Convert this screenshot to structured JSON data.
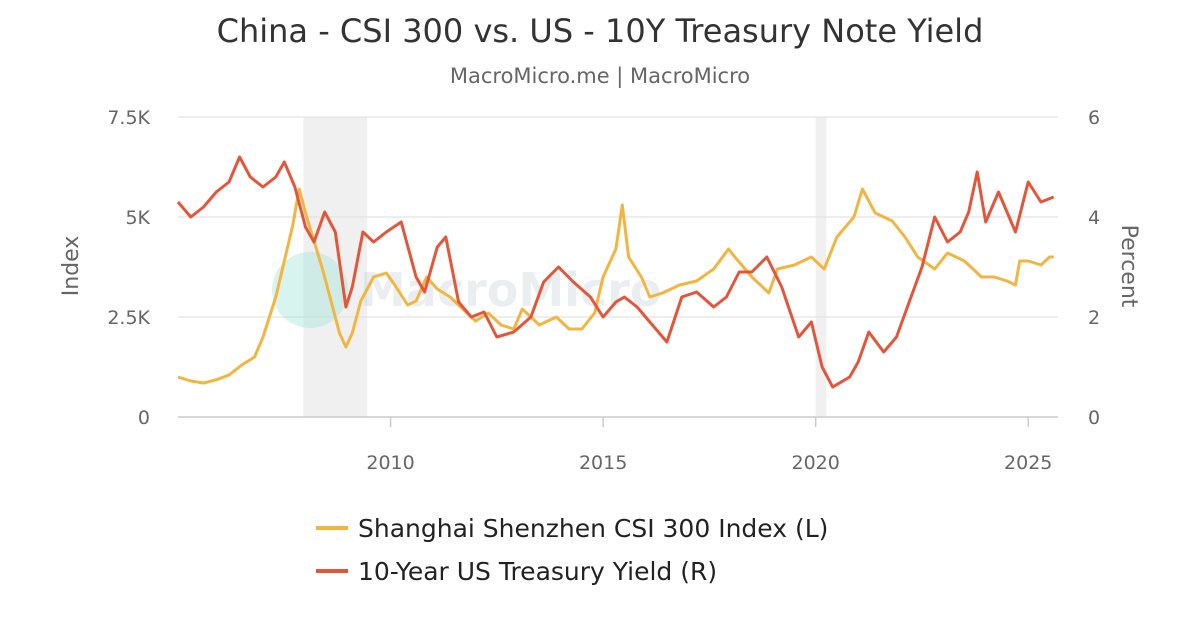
{
  "title": "China - CSI 300 vs. US - 10Y Treasury Note Yield",
  "subtitle": "MacroMicro.me | MacroMicro",
  "watermark": "MacroMicro",
  "chart_data": {
    "type": "line",
    "x_ticks": [
      "2010",
      "2015",
      "2020",
      "2025"
    ],
    "x_range": [
      2005.0,
      2025.7
    ],
    "left_axis": {
      "label": "Index",
      "range": [
        0,
        7500
      ],
      "ticks": [
        0,
        2500,
        5000,
        7500
      ],
      "tick_labels": [
        "0",
        "2.5K",
        "5K",
        "7.5K"
      ]
    },
    "right_axis": {
      "label": "Percent",
      "range": [
        0,
        6
      ],
      "ticks": [
        0,
        2,
        4,
        6
      ],
      "tick_labels": [
        "0",
        "2",
        "4",
        "6"
      ]
    },
    "shaded_periods": [
      [
        2007.95,
        2009.45
      ],
      [
        2020.0,
        2020.25
      ]
    ],
    "grid": true,
    "legend_position": "bottom",
    "series": [
      {
        "name": "Shanghai Shenzhen CSI 300 Index (L)",
        "axis": "left",
        "color": "#f2b640",
        "points": [
          [
            2005.0,
            1000
          ],
          [
            2005.3,
            900
          ],
          [
            2005.6,
            850
          ],
          [
            2005.9,
            930
          ],
          [
            2006.2,
            1050
          ],
          [
            2006.5,
            1300
          ],
          [
            2006.8,
            1500
          ],
          [
            2007.0,
            2000
          ],
          [
            2007.3,
            3000
          ],
          [
            2007.5,
            3900
          ],
          [
            2007.7,
            4800
          ],
          [
            2007.85,
            5700
          ],
          [
            2008.0,
            5100
          ],
          [
            2008.2,
            4400
          ],
          [
            2008.4,
            3700
          ],
          [
            2008.6,
            2900
          ],
          [
            2008.8,
            2100
          ],
          [
            2008.95,
            1750
          ],
          [
            2009.1,
            2100
          ],
          [
            2009.3,
            2900
          ],
          [
            2009.6,
            3500
          ],
          [
            2009.9,
            3600
          ],
          [
            2010.1,
            3300
          ],
          [
            2010.4,
            2800
          ],
          [
            2010.6,
            2900
          ],
          [
            2010.85,
            3500
          ],
          [
            2011.1,
            3200
          ],
          [
            2011.4,
            3000
          ],
          [
            2011.7,
            2700
          ],
          [
            2012.0,
            2400
          ],
          [
            2012.3,
            2600
          ],
          [
            2012.6,
            2300
          ],
          [
            2012.9,
            2200
          ],
          [
            2013.1,
            2700
          ],
          [
            2013.5,
            2300
          ],
          [
            2013.9,
            2500
          ],
          [
            2014.2,
            2200
          ],
          [
            2014.5,
            2200
          ],
          [
            2014.8,
            2600
          ],
          [
            2015.0,
            3500
          ],
          [
            2015.3,
            4200
          ],
          [
            2015.45,
            5300
          ],
          [
            2015.6,
            4000
          ],
          [
            2015.9,
            3500
          ],
          [
            2016.1,
            3000
          ],
          [
            2016.4,
            3100
          ],
          [
            2016.8,
            3300
          ],
          [
            2017.2,
            3400
          ],
          [
            2017.6,
            3700
          ],
          [
            2017.95,
            4200
          ],
          [
            2018.1,
            4000
          ],
          [
            2018.5,
            3500
          ],
          [
            2018.9,
            3100
          ],
          [
            2019.1,
            3700
          ],
          [
            2019.5,
            3800
          ],
          [
            2019.9,
            4000
          ],
          [
            2020.2,
            3700
          ],
          [
            2020.5,
            4500
          ],
          [
            2020.9,
            5000
          ],
          [
            2021.1,
            5700
          ],
          [
            2021.4,
            5100
          ],
          [
            2021.8,
            4900
          ],
          [
            2022.1,
            4500
          ],
          [
            2022.4,
            4000
          ],
          [
            2022.8,
            3700
          ],
          [
            2023.1,
            4100
          ],
          [
            2023.5,
            3900
          ],
          [
            2023.9,
            3500
          ],
          [
            2024.2,
            3500
          ],
          [
            2024.5,
            3400
          ],
          [
            2024.7,
            3300
          ],
          [
            2024.8,
            3900
          ],
          [
            2025.0,
            3900
          ],
          [
            2025.3,
            3800
          ],
          [
            2025.5,
            4000
          ],
          [
            2025.6,
            4000
          ]
        ]
      },
      {
        "name": "10-Year US Treasury Yield (R)",
        "axis": "right",
        "color": "#e5553a",
        "points": [
          [
            2005.0,
            4.3
          ],
          [
            2005.3,
            4.0
          ],
          [
            2005.6,
            4.2
          ],
          [
            2005.9,
            4.5
          ],
          [
            2006.2,
            4.7
          ],
          [
            2006.45,
            5.2
          ],
          [
            2006.7,
            4.8
          ],
          [
            2007.0,
            4.6
          ],
          [
            2007.3,
            4.8
          ],
          [
            2007.5,
            5.1
          ],
          [
            2007.75,
            4.6
          ],
          [
            2008.0,
            3.8
          ],
          [
            2008.2,
            3.5
          ],
          [
            2008.45,
            4.1
          ],
          [
            2008.7,
            3.7
          ],
          [
            2008.95,
            2.2
          ],
          [
            2009.1,
            2.6
          ],
          [
            2009.35,
            3.7
          ],
          [
            2009.6,
            3.5
          ],
          [
            2009.9,
            3.7
          ],
          [
            2010.25,
            3.9
          ],
          [
            2010.6,
            2.8
          ],
          [
            2010.8,
            2.5
          ],
          [
            2011.1,
            3.4
          ],
          [
            2011.3,
            3.6
          ],
          [
            2011.6,
            2.3
          ],
          [
            2011.9,
            2.0
          ],
          [
            2012.2,
            2.1
          ],
          [
            2012.5,
            1.6
          ],
          [
            2012.9,
            1.7
          ],
          [
            2013.3,
            2.0
          ],
          [
            2013.6,
            2.7
          ],
          [
            2013.95,
            3.0
          ],
          [
            2014.3,
            2.7
          ],
          [
            2014.7,
            2.4
          ],
          [
            2015.0,
            2.0
          ],
          [
            2015.3,
            2.3
          ],
          [
            2015.5,
            2.4
          ],
          [
            2015.8,
            2.2
          ],
          [
            2016.2,
            1.8
          ],
          [
            2016.5,
            1.5
          ],
          [
            2016.85,
            2.4
          ],
          [
            2017.2,
            2.5
          ],
          [
            2017.6,
            2.2
          ],
          [
            2017.9,
            2.4
          ],
          [
            2018.2,
            2.9
          ],
          [
            2018.5,
            2.9
          ],
          [
            2018.85,
            3.2
          ],
          [
            2019.2,
            2.6
          ],
          [
            2019.6,
            1.6
          ],
          [
            2019.9,
            1.9
          ],
          [
            2020.15,
            1.0
          ],
          [
            2020.4,
            0.6
          ],
          [
            2020.8,
            0.8
          ],
          [
            2021.0,
            1.1
          ],
          [
            2021.25,
            1.7
          ],
          [
            2021.6,
            1.3
          ],
          [
            2021.9,
            1.6
          ],
          [
            2022.2,
            2.3
          ],
          [
            2022.5,
            3.0
          ],
          [
            2022.8,
            4.0
          ],
          [
            2023.1,
            3.5
          ],
          [
            2023.4,
            3.7
          ],
          [
            2023.6,
            4.1
          ],
          [
            2023.8,
            4.9
          ],
          [
            2024.0,
            3.9
          ],
          [
            2024.3,
            4.5
          ],
          [
            2024.7,
            3.7
          ],
          [
            2025.0,
            4.7
          ],
          [
            2025.3,
            4.3
          ],
          [
            2025.6,
            4.4
          ]
        ]
      }
    ]
  }
}
